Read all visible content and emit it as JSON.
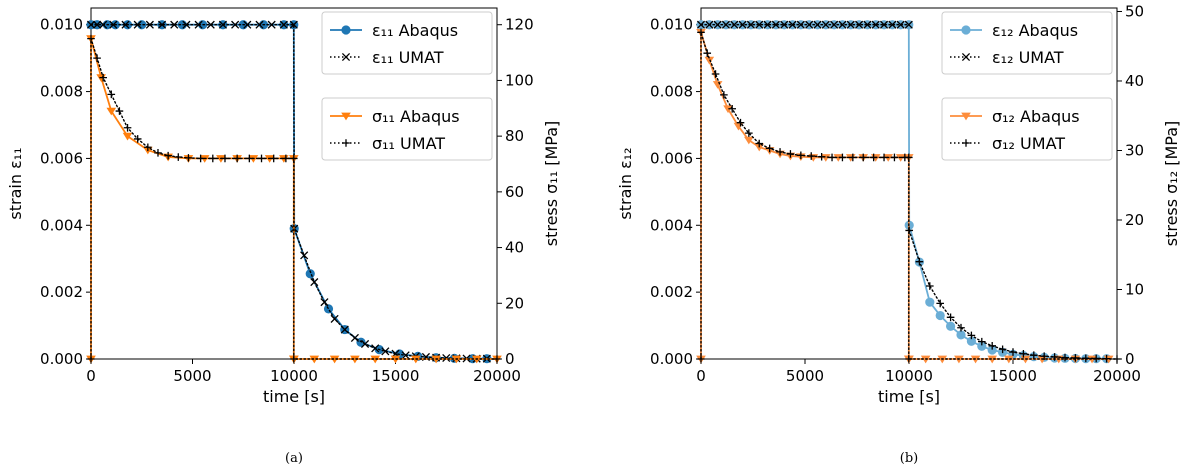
{
  "figures": [
    {
      "caption": "(a)",
      "x_label": "time [s]",
      "y_left_label": "strain ε₁₁",
      "y_right_label": "stress σ₁₁ [MPa]",
      "x_ticks": [
        "0",
        "5000",
        "10000",
        "15000",
        "20000"
      ],
      "y_left_ticks": [
        "0.000",
        "0.002",
        "0.004",
        "0.006",
        "0.008",
        "0.010"
      ],
      "y_right_ticks": [
        "0",
        "20",
        "40",
        "60",
        "80",
        "100",
        "120"
      ],
      "legend_strain": [
        "ε₁₁ Abaqus",
        "ε₁₁ UMAT"
      ],
      "legend_stress": [
        "σ₁₁ Abaqus",
        "σ₁₁ UMAT"
      ]
    },
    {
      "caption": "(b)",
      "x_label": "time [s]",
      "y_left_label": "strain ε₁₂",
      "y_right_label": "stress σ₁₂ [MPa]",
      "x_ticks": [
        "0",
        "5000",
        "10000",
        "15000",
        "20000"
      ],
      "y_left_ticks": [
        "0.000",
        "0.002",
        "0.004",
        "0.006",
        "0.008",
        "0.010"
      ],
      "y_right_ticks": [
        "0",
        "10",
        "20",
        "30",
        "40",
        "50"
      ],
      "legend_strain": [
        "ε₁₂ Abaqus",
        "ε₁₂ UMAT"
      ],
      "legend_stress": [
        "σ₁₂ Abaqus",
        "σ₁₂ UMAT"
      ]
    }
  ],
  "chart_data": [
    {
      "type": "line",
      "xlabel": "time [s]",
      "ylabel": "strain ε₁₁",
      "ylabel_right": "stress σ₁₁ [MPa]",
      "xlim": [
        0,
        20000
      ],
      "ylim": [
        0,
        0.0105
      ],
      "ylim_right": [
        0,
        126
      ],
      "colors": {
        "strain": "#1f77b4",
        "stress": "#ff7f0e",
        "umat": "#000000"
      },
      "legend": [
        "top-right",
        "middle-right"
      ],
      "series": [
        {
          "name": "ε₁₁ Abaqus",
          "axis": "left",
          "marker": "circle",
          "x": [
            0,
            300,
            800,
            1200,
            1800,
            2500,
            3500,
            4500,
            5500,
            6500,
            7500,
            8500,
            9500,
            9990,
            10010,
            10800,
            11700,
            12500,
            13300,
            14200,
            15200,
            16100,
            17000,
            17900,
            18800,
            19500
          ],
          "y": [
            0.01,
            0.01,
            0.01,
            0.01,
            0.01,
            0.01,
            0.01,
            0.01,
            0.01,
            0.01,
            0.01,
            0.01,
            0.01,
            0.01,
            0.0039,
            0.00255,
            0.0015,
            0.00088,
            0.0005,
            0.00028,
            0.00015,
            8e-05,
            4e-05,
            2e-05,
            1e-05,
            1e-05
          ]
        },
        {
          "name": "ε₁₁ UMAT",
          "axis": "left",
          "marker": "x",
          "x": [
            0,
            300,
            600,
            1100,
            1700,
            2300,
            2900,
            3500,
            4100,
            4700,
            5300,
            5900,
            6500,
            7100,
            7700,
            8300,
            8900,
            9500,
            9990,
            10010,
            10500,
            11000,
            11500,
            12000,
            12500,
            13000,
            13500,
            14000,
            14500,
            15000,
            15500,
            16000,
            16500,
            17000,
            17500,
            18000,
            18500,
            19000,
            19500
          ],
          "y": [
            0.01,
            0.01,
            0.01,
            0.01,
            0.01,
            0.01,
            0.01,
            0.01,
            0.01,
            0.01,
            0.01,
            0.01,
            0.01,
            0.01,
            0.01,
            0.01,
            0.01,
            0.01,
            0.01,
            0.0039,
            0.0031,
            0.0023,
            0.0017,
            0.0012,
            0.00088,
            0.00063,
            0.00045,
            0.00032,
            0.00023,
            0.00016,
            0.00011,
            8e-05,
            6e-05,
            4e-05,
            3e-05,
            2e-05,
            1.5e-05,
            1e-05,
            1e-05
          ]
        },
        {
          "name": "σ₁₁ Abaqus",
          "axis": "right",
          "marker": "triangle",
          "x": [
            0,
            0,
            500,
            1000,
            1800,
            2800,
            3800,
            4800,
            5600,
            6400,
            7200,
            8000,
            8800,
            9500,
            9990,
            9990,
            10000,
            11000,
            12000,
            13000,
            14000,
            15000,
            16000,
            17000,
            18000,
            19000,
            20000
          ],
          "y": [
            0,
            115,
            101,
            89,
            80,
            75,
            72.5,
            72,
            72,
            72,
            72,
            72,
            72,
            72,
            72,
            0,
            0,
            0,
            0,
            0,
            0,
            0,
            0,
            0,
            0,
            0,
            0
          ]
        },
        {
          "name": "σ₁₁ UMAT",
          "axis": "right",
          "marker": "plus",
          "x": [
            0,
            0,
            300,
            600,
            1000,
            1400,
            1800,
            2300,
            2800,
            3300,
            3800,
            4300,
            4800,
            5400,
            6000,
            6600,
            7200,
            7800,
            8400,
            9000,
            9600,
            9990,
            9990,
            20000
          ],
          "y": [
            0,
            115,
            108,
            101,
            95,
            89,
            83,
            79,
            76,
            74,
            73,
            72.5,
            72.2,
            72,
            72,
            72,
            72,
            72,
            72,
            72,
            72,
            72,
            0,
            0
          ]
        }
      ]
    },
    {
      "type": "line",
      "xlabel": "time [s]",
      "ylabel": "strain ε₁₂",
      "ylabel_right": "stress σ₁₂ [MPa]",
      "xlim": [
        0,
        20000
      ],
      "ylim": [
        0,
        0.0105
      ],
      "ylim_right": [
        0,
        50.5
      ],
      "colors": {
        "strain": "#6baed6",
        "stress": "#fd8d3c",
        "umat": "#000000"
      },
      "legend": [
        "top-right",
        "middle-right"
      ],
      "series": [
        {
          "name": "ε₁₂ Abaqus",
          "axis": "left",
          "marker": "circle",
          "x": [
            0,
            400,
            800,
            1200,
            1600,
            2000,
            2400,
            2800,
            3200,
            3600,
            4000,
            4400,
            4800,
            5200,
            5600,
            6000,
            6400,
            6800,
            7200,
            7600,
            8000,
            8400,
            8800,
            9200,
            9600,
            9990,
            10010,
            10500,
            11000,
            11500,
            12000,
            12500,
            13000,
            13500,
            14000,
            14500,
            15000,
            15500,
            16000,
            16500,
            17000,
            17500,
            18000,
            18500,
            19000,
            19500
          ],
          "y": [
            0.01,
            0.01,
            0.01,
            0.01,
            0.01,
            0.01,
            0.01,
            0.01,
            0.01,
            0.01,
            0.01,
            0.01,
            0.01,
            0.01,
            0.01,
            0.01,
            0.01,
            0.01,
            0.01,
            0.01,
            0.01,
            0.01,
            0.01,
            0.01,
            0.01,
            0.01,
            0.004,
            0.0029,
            0.0017,
            0.0013,
            0.00098,
            0.00072,
            0.00053,
            0.00038,
            0.00027,
            0.0002,
            0.00014,
            0.0001,
            7e-05,
            5e-05,
            3e-05,
            2e-05,
            1.5e-05,
            1e-05,
            1e-05,
            1e-05
          ]
        },
        {
          "name": "ε₁₂ UMAT",
          "axis": "left",
          "marker": "x",
          "x": [
            0,
            400,
            800,
            1200,
            1600,
            2000,
            2400,
            2800,
            3200,
            3600,
            4000,
            4400,
            4800,
            5200,
            5600,
            6000,
            6400,
            6800,
            7200,
            7600,
            8000,
            8400,
            8800,
            9200,
            9600,
            9990
          ],
          "y": [
            0.01,
            0.01,
            0.01,
            0.01,
            0.01,
            0.01,
            0.01,
            0.01,
            0.01,
            0.01,
            0.01,
            0.01,
            0.01,
            0.01,
            0.01,
            0.01,
            0.01,
            0.01,
            0.01,
            0.01,
            0.01,
            0.01,
            0.01,
            0.01,
            0.01,
            0.01
          ]
        },
        {
          "name": "σ₁₂ Abaqus",
          "axis": "right",
          "marker": "triangle",
          "x": [
            0,
            0,
            400,
            800,
            1300,
            1800,
            2300,
            2800,
            3300,
            3800,
            4300,
            4800,
            5400,
            6000,
            6600,
            7200,
            7800,
            8400,
            9000,
            9600,
            9990,
            9990,
            10000,
            10800,
            11600,
            12400,
            13200,
            14000,
            14800,
            15600,
            16400,
            17200,
            18000,
            18800,
            19600
          ],
          "y": [
            0,
            47,
            43,
            39.5,
            36,
            33.5,
            31.5,
            30.5,
            30,
            29.5,
            29.2,
            29.1,
            29,
            29,
            29,
            29,
            29,
            29,
            29,
            29,
            29,
            0,
            0,
            0,
            0,
            0,
            0,
            0,
            0,
            0,
            0,
            0,
            0,
            0,
            0
          ]
        },
        {
          "name": "σ₁₂ UMAT",
          "axis": "right",
          "marker": "plus",
          "x": [
            0,
            0,
            300,
            700,
            1100,
            1500,
            1900,
            2300,
            2800,
            3300,
            3800,
            4300,
            4800,
            5300,
            5800,
            6300,
            6800,
            7300,
            7800,
            8300,
            8800,
            9300,
            9800,
            9990,
            9990,
            20000,
            10010,
            10500,
            11000,
            11500,
            12000,
            12500,
            13000,
            13500,
            14000,
            14500,
            15000,
            15500,
            16000,
            16500,
            17000,
            17500,
            18000,
            18500,
            19000,
            19500
          ],
          "y": [
            0,
            47,
            44,
            41,
            38,
            36,
            34,
            32.5,
            31,
            30.3,
            29.8,
            29.5,
            29.3,
            29.2,
            29.1,
            29,
            29,
            29,
            29,
            29,
            29,
            29,
            29,
            29,
            0,
            0,
            18.5,
            14,
            10.5,
            8,
            6,
            4.5,
            3.4,
            2.5,
            1.9,
            1.4,
            1.0,
            0.75,
            0.55,
            0.4,
            0.3,
            0.2,
            0.15,
            0.1,
            0.08,
            0.05
          ]
        }
      ]
    }
  ]
}
